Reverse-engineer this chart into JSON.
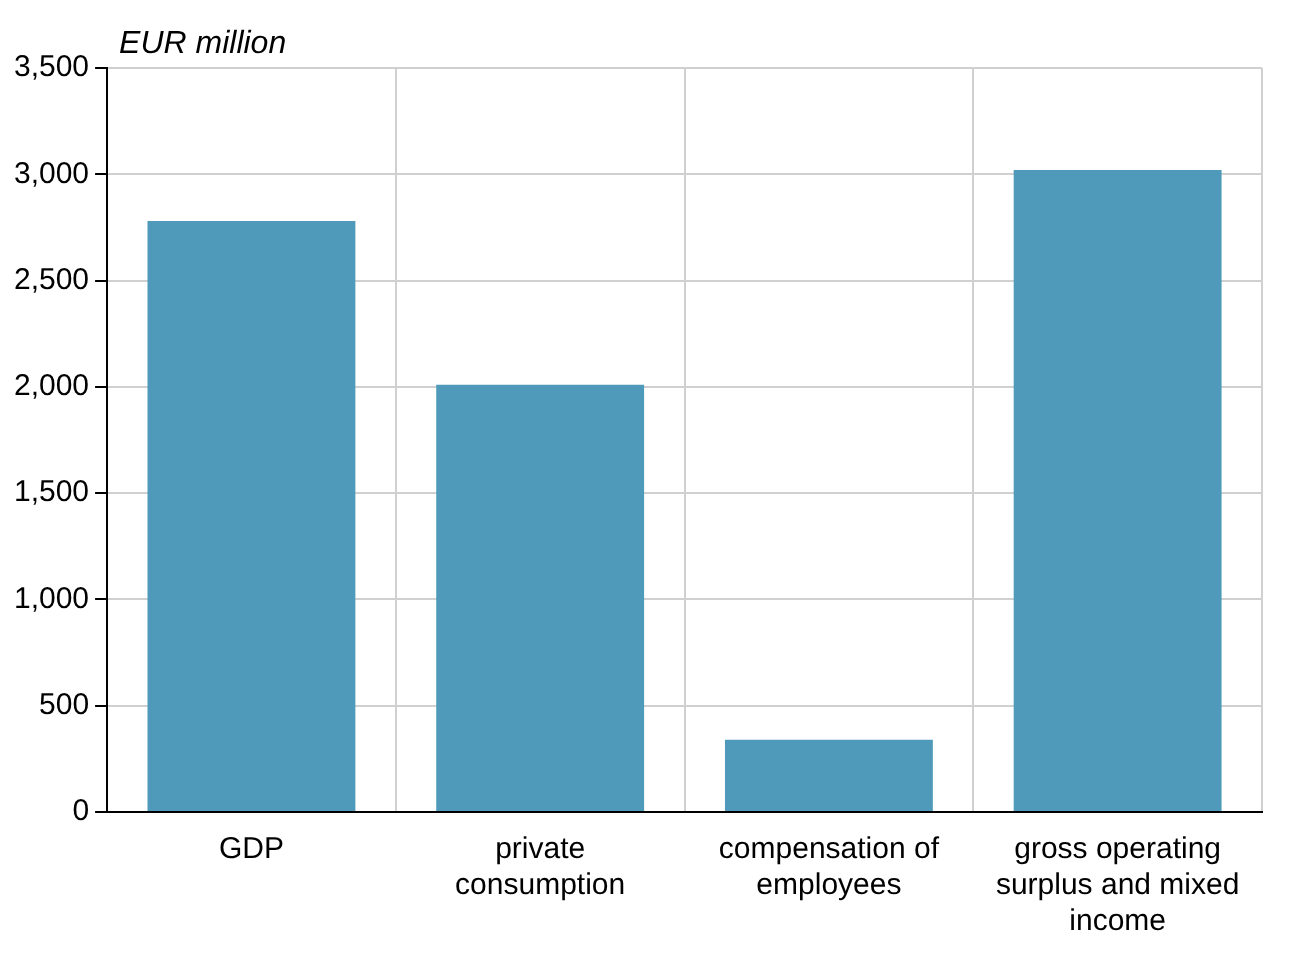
{
  "chart_data": {
    "type": "bar",
    "ylabel": "EUR million",
    "categories": [
      "GDP",
      "private consumption",
      "compensation of employees",
      "gross operating surplus and mixed income"
    ],
    "values": [
      2780,
      2010,
      340,
      3020
    ],
    "color": "#4f9aba",
    "ylim": [
      0,
      3500
    ],
    "yticks": [
      0,
      500,
      {
        "value": 1000,
        "label": "1,000"
      },
      {
        "value": 1500,
        "label": "1,500"
      },
      {
        "value": 2000,
        "label": "2,000"
      },
      {
        "value": 2500,
        "label": "2,500"
      },
      {
        "value": 3000,
        "label": "3,000"
      },
      {
        "value": 3500,
        "label": "3,500"
      }
    ],
    "grid": true
  }
}
